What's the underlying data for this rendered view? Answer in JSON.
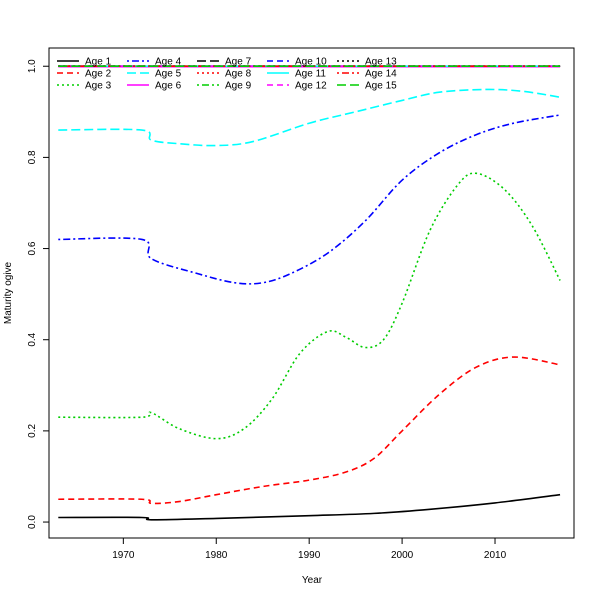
{
  "chart_data": {
    "type": "line",
    "title": "",
    "xlabel": "Year",
    "ylabel": "Maturity ogive",
    "xlim": [
      1962,
      2018.5
    ],
    "ylim": [
      -0.035,
      1.04
    ],
    "xticks": [
      1970,
      1980,
      1990,
      2000,
      2010
    ],
    "yticks": [
      0.0,
      0.2,
      0.4,
      0.6,
      0.8,
      1.0
    ],
    "xtick_labels": [
      "1970",
      "1980",
      "1990",
      "2000",
      "2010"
    ],
    "ytick_labels": [
      "0.0",
      "0.2",
      "0.4",
      "0.6",
      "0.8",
      "1.0"
    ],
    "grid": false,
    "legend_position": "top-left",
    "series": [
      {
        "name": "Age 1",
        "color": "#000000",
        "dash": "solid",
        "points": [
          [
            1963,
            0.01
          ],
          [
            1972,
            0.01
          ],
          [
            1973,
            0.005
          ],
          [
            1980,
            0.008
          ],
          [
            1990,
            0.014
          ],
          [
            1997,
            0.019
          ],
          [
            2003,
            0.028
          ],
          [
            2010,
            0.042
          ],
          [
            2017,
            0.06
          ]
        ]
      },
      {
        "name": "Age 2",
        "color": "#ff0000",
        "dash": "dashed",
        "points": [
          [
            1963,
            0.05
          ],
          [
            1972,
            0.05
          ],
          [
            1973,
            0.041
          ],
          [
            1976,
            0.045
          ],
          [
            1980,
            0.06
          ],
          [
            1985,
            0.078
          ],
          [
            1990,
            0.092
          ],
          [
            1994,
            0.11
          ],
          [
            1997,
            0.14
          ],
          [
            2000,
            0.2
          ],
          [
            2004,
            0.28
          ],
          [
            2008,
            0.34
          ],
          [
            2012,
            0.362
          ],
          [
            2017,
            0.345
          ]
        ]
      },
      {
        "name": "Age 3",
        "color": "#00cd00",
        "dash": "dotted",
        "points": [
          [
            1963,
            0.23
          ],
          [
            1972,
            0.23
          ],
          [
            1973,
            0.24
          ],
          [
            1976,
            0.205
          ],
          [
            1980,
            0.183
          ],
          [
            1983,
            0.205
          ],
          [
            1986,
            0.27
          ],
          [
            1989,
            0.37
          ],
          [
            1992,
            0.418
          ],
          [
            1994,
            0.405
          ],
          [
            1996,
            0.383
          ],
          [
            1998,
            0.4
          ],
          [
            2000,
            0.48
          ],
          [
            2003,
            0.64
          ],
          [
            2006,
            0.74
          ],
          [
            2008,
            0.765
          ],
          [
            2011,
            0.73
          ],
          [
            2014,
            0.65
          ],
          [
            2017,
            0.53
          ]
        ]
      },
      {
        "name": "Age 4",
        "color": "#0000ff",
        "dash": "dotdash",
        "points": [
          [
            1963,
            0.62
          ],
          [
            1972,
            0.62
          ],
          [
            1973,
            0.578
          ],
          [
            1978,
            0.545
          ],
          [
            1982,
            0.525
          ],
          [
            1985,
            0.525
          ],
          [
            1988,
            0.545
          ],
          [
            1992,
            0.59
          ],
          [
            1996,
            0.66
          ],
          [
            2000,
            0.75
          ],
          [
            2004,
            0.81
          ],
          [
            2008,
            0.85
          ],
          [
            2012,
            0.875
          ],
          [
            2017,
            0.893
          ]
        ]
      },
      {
        "name": "Age 5",
        "color": "#00ffff",
        "dash": "longdash",
        "points": [
          [
            1963,
            0.86
          ],
          [
            1972,
            0.86
          ],
          [
            1973,
            0.838
          ],
          [
            1976,
            0.83
          ],
          [
            1980,
            0.826
          ],
          [
            1984,
            0.835
          ],
          [
            1990,
            0.875
          ],
          [
            1995,
            0.9
          ],
          [
            2000,
            0.925
          ],
          [
            2004,
            0.943
          ],
          [
            2009,
            0.949
          ],
          [
            2013,
            0.945
          ],
          [
            2017,
            0.932
          ]
        ]
      },
      {
        "name": "Age 6",
        "color": "#ff00ff",
        "dash": "solid",
        "points": [
          [
            1963,
            0.999
          ],
          [
            2017,
            0.999
          ]
        ]
      },
      {
        "name": "Age 7",
        "color": "#000000",
        "dash": "longdash",
        "points": [
          [
            1963,
            1.0
          ],
          [
            2017,
            1.0
          ]
        ]
      },
      {
        "name": "Age 8",
        "color": "#ff0000",
        "dash": "dotted",
        "points": [
          [
            1963,
            1.0
          ],
          [
            2017,
            1.0
          ]
        ]
      },
      {
        "name": "Age 9",
        "color": "#00cd00",
        "dash": "dotdash",
        "points": [
          [
            1963,
            1.0
          ],
          [
            2017,
            1.0
          ]
        ]
      },
      {
        "name": "Age 10",
        "color": "#0000ff",
        "dash": "dashed",
        "points": [
          [
            1963,
            1.0
          ],
          [
            2017,
            1.0
          ]
        ]
      },
      {
        "name": "Age 11",
        "color": "#00ffff",
        "dash": "solid",
        "points": [
          [
            1963,
            1.0
          ],
          [
            2017,
            1.0
          ]
        ]
      },
      {
        "name": "Age 12",
        "color": "#ff00ff",
        "dash": "dashed",
        "points": [
          [
            1963,
            1.0
          ],
          [
            2017,
            1.0
          ]
        ]
      },
      {
        "name": "Age 13",
        "color": "#000000",
        "dash": "dotted",
        "points": [
          [
            1963,
            1.0
          ],
          [
            2017,
            1.0
          ]
        ]
      },
      {
        "name": "Age 14",
        "color": "#ff0000",
        "dash": "dotdash",
        "points": [
          [
            1963,
            1.0
          ],
          [
            2017,
            1.0
          ]
        ]
      },
      {
        "name": "Age 15",
        "color": "#00cd00",
        "dash": "longdash",
        "points": [
          [
            1963,
            1.0
          ],
          [
            2017,
            1.0
          ]
        ]
      }
    ]
  }
}
